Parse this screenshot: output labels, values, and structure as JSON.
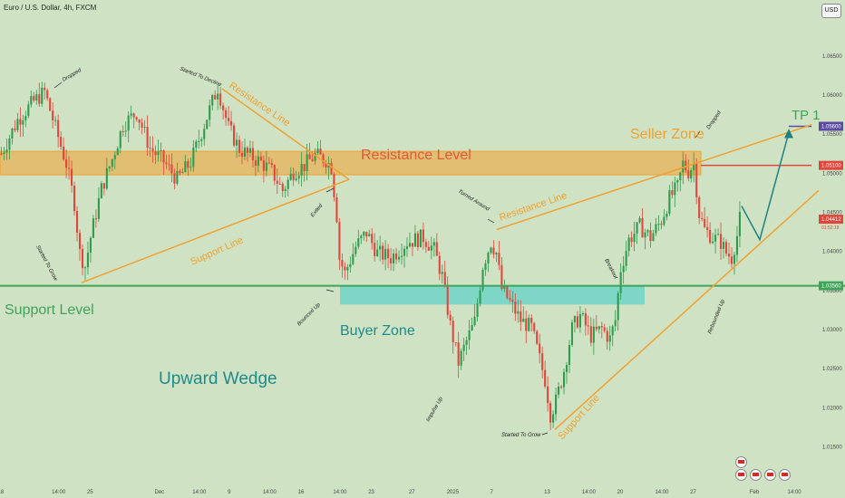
{
  "header": {
    "title": "Euro / U.S. Dollar, 4h, FXCM",
    "currency": "USD"
  },
  "chart_data": {
    "type": "candlestick",
    "symbol": "EURUSD",
    "ylim": [
      1.011,
      1.071
    ],
    "price_ticks": [
      "1.06500",
      "1.06000",
      "1.05500",
      "1.05000",
      "1.04500",
      "1.04000",
      "1.03500",
      "1.03000",
      "1.02500",
      "1.02000",
      "1.01500"
    ],
    "price_tick_values": [
      1.065,
      1.06,
      1.055,
      1.05,
      1.045,
      1.04,
      1.035,
      1.03,
      1.025,
      1.02,
      1.015
    ],
    "time_ticks": [
      "18",
      "14:00",
      "25",
      "Dec",
      "14:00",
      "9",
      "14:00",
      "16",
      "14:00",
      "23",
      "27",
      "2025",
      "7",
      "13",
      "14:00",
      "20",
      "14:00",
      "27",
      "Feb",
      "14:00"
    ],
    "time_tick_index": [
      0,
      20,
      33,
      58,
      72,
      85,
      98,
      111,
      124,
      137,
      152,
      166,
      182,
      202,
      216,
      229,
      243,
      256,
      278,
      292
    ],
    "bar_count": 300,
    "close_path": [
      [
        0,
        1.0525
      ],
      [
        6,
        1.0568
      ],
      [
        12,
        1.0592
      ],
      [
        16,
        1.0604
      ],
      [
        20,
        1.0558
      ],
      [
        24,
        1.0512
      ],
      [
        27,
        1.0462
      ],
      [
        29,
        1.0398
      ],
      [
        31,
        1.0381
      ],
      [
        33,
        1.0418
      ],
      [
        37,
        1.048
      ],
      [
        41,
        1.0518
      ],
      [
        45,
        1.0562
      ],
      [
        50,
        1.0578
      ],
      [
        55,
        1.0532
      ],
      [
        60,
        1.0515
      ],
      [
        65,
        1.0492
      ],
      [
        70,
        1.0514
      ],
      [
        76,
        1.0572
      ],
      [
        80,
        1.061
      ],
      [
        84,
        1.0558
      ],
      [
        88,
        1.0531
      ],
      [
        92,
        1.0522
      ],
      [
        96,
        1.0514
      ],
      [
        100,
        1.0502
      ],
      [
        104,
        1.0478
      ],
      [
        108,
        1.0502
      ],
      [
        112,
        1.051
      ],
      [
        116,
        1.0523
      ],
      [
        120,
        1.0517
      ],
      [
        122,
        1.0508
      ],
      [
        124,
        1.0446
      ],
      [
        125,
        1.0391
      ],
      [
        127,
        1.0372
      ],
      [
        131,
        1.0406
      ],
      [
        135,
        1.0424
      ],
      [
        139,
        1.0398
      ],
      [
        144,
        1.0392
      ],
      [
        150,
        1.0412
      ],
      [
        156,
        1.0418
      ],
      [
        160,
        1.0402
      ],
      [
        163,
        1.0368
      ],
      [
        166,
        1.0305
      ],
      [
        169,
        1.0258
      ],
      [
        172,
        1.0285
      ],
      [
        175,
        1.031
      ],
      [
        178,
        1.0382
      ],
      [
        181,
        1.0412
      ],
      [
        183,
        1.0398
      ],
      [
        185,
        1.0352
      ],
      [
        188,
        1.0335
      ],
      [
        192,
        1.0312
      ],
      [
        196,
        1.0302
      ],
      [
        199,
        1.0262
      ],
      [
        201,
        1.0236
      ],
      [
        203,
        1.0192
      ],
      [
        205,
        1.0208
      ],
      [
        208,
        1.0248
      ],
      [
        211,
        1.0301
      ],
      [
        214,
        1.0318
      ],
      [
        218,
        1.0292
      ],
      [
        222,
        1.0301
      ],
      [
        225,
        1.0288
      ],
      [
        227,
        1.0312
      ],
      [
        229,
        1.0378
      ],
      [
        232,
        1.0415
      ],
      [
        236,
        1.0432
      ],
      [
        240,
        1.0418
      ],
      [
        244,
        1.044
      ],
      [
        247,
        1.0468
      ],
      [
        250,
        1.0482
      ],
      [
        252,
        1.0512
      ],
      [
        254,
        1.0502
      ],
      [
        256,
        1.0512
      ],
      [
        258,
        1.0448
      ],
      [
        260,
        1.0428
      ],
      [
        263,
        1.0418
      ],
      [
        266,
        1.0412
      ],
      [
        268,
        1.0398
      ],
      [
        270,
        1.0392
      ],
      [
        272,
        1.042
      ],
      [
        273,
        1.0441
      ]
    ],
    "levels": {
      "resistance": 1.051,
      "support": 1.0356,
      "tp1": 1.056,
      "current": 1.04412,
      "current_timer": "01:52:19",
      "seller_zone": [
        1.0498,
        1.0528
      ],
      "buyer_zone": [
        1.0332,
        1.0356
      ]
    }
  },
  "annotations": {
    "resistance_level": "Resistance Level",
    "support_level": "Support Level",
    "seller_zone": "Seller Zone",
    "buyer_zone": "Buyer Zone",
    "upward_wedge": "Upward Wedge",
    "tp1": "TP 1",
    "resistance_line_1": "Resistance Line",
    "support_line_1": "Support Line",
    "resistance_line_2": "Resistance Line",
    "support_line_2": "Support Line",
    "dropped_1": "Dropped",
    "started_to_decline": "Started To Decline",
    "started_to_grow_1": "Started To Grow",
    "exited": "Exited",
    "bounced_up": "Bounced Up",
    "turned_around": "Turned Around",
    "impulse_up": "Impulse Up",
    "started_to_grow_2": "Started To Grow",
    "breakout": "Breakout",
    "rebounded_up": "Rebounded Up",
    "dropped_2": "Dropped"
  },
  "colors": {
    "background": "#cfe3c4",
    "up": "#2e9b4f",
    "down": "#e0463c",
    "orange": "#f0a030",
    "resistance_text": "#e05a3a",
    "support": "#3fa35a",
    "buyer_zone": "#6fd3c7",
    "wedge_text": "#1e8a8a",
    "arrow": "#1e8080",
    "tp_label": "#5a4aa0"
  }
}
